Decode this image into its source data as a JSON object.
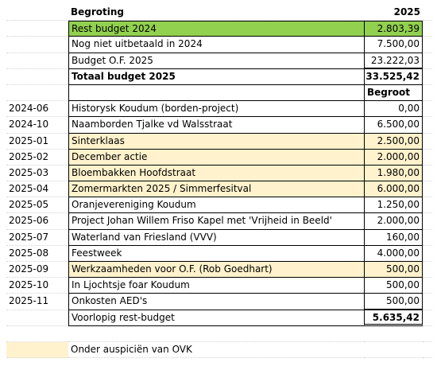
{
  "header": {
    "title": "Begroting",
    "year": "2025"
  },
  "summary": [
    {
      "label": "Rest budget 2024",
      "amount": "2.803,39"
    },
    {
      "label": "Nog niet uitbetaald in 2024",
      "amount": "7.500,00"
    },
    {
      "label": "Budget O.F. 2025",
      "amount": "23.222,03"
    },
    {
      "label": "Totaal budget 2025",
      "amount": "33.525,42"
    }
  ],
  "column_header": "Begroot",
  "items": [
    {
      "date": "2024-06",
      "desc": "Historysk Koudum (borden-project)",
      "amount": "0,00"
    },
    {
      "date": "2024-10",
      "desc": "Naamborden Tjalke vd Walsstraat",
      "amount": "6.500,00"
    },
    {
      "date": "2025-01",
      "desc": "Sinterklaas",
      "amount": "2.500,00"
    },
    {
      "date": "2025-02",
      "desc": "December actie",
      "amount": "2.000,00"
    },
    {
      "date": "2025-03",
      "desc": "Bloembakken Hoofdstraat",
      "amount": "1.980,00"
    },
    {
      "date": "2025-04",
      "desc": "Zomermarkten 2025 / Simmerfesitval",
      "amount": "6.000,00"
    },
    {
      "date": "2025-05",
      "desc": "Oranjevereniging Koudum",
      "amount": "1.250,00"
    },
    {
      "date": "2025-06",
      "desc": "Project Johan Willem Friso Kapel met 'Vrijheid in Beeld'",
      "amount": "2.000,00"
    },
    {
      "date": "2025-07",
      "desc": "Waterland van Friesland (VVV)",
      "amount": "160,00"
    },
    {
      "date": "2025-08",
      "desc": "Feestweek",
      "amount": "4.000,00"
    },
    {
      "date": "2025-09",
      "desc": "Werkzaamheden voor O.F. (Rob Goedhart)",
      "amount": "500,00"
    },
    {
      "date": "2025-10",
      "desc": "In Ljochtsje foar Koudum",
      "amount": "500,00"
    },
    {
      "date": "2025-11",
      "desc": "Onkosten AED's",
      "amount": "500,00"
    }
  ],
  "footer": {
    "label": "Voorlopig rest-budget",
    "amount": "5.635,42"
  },
  "legend": {
    "label": "Onder auspiciën van OVK"
  },
  "colors": {
    "green": "#92d050",
    "yellow": "#fff2cc"
  }
}
